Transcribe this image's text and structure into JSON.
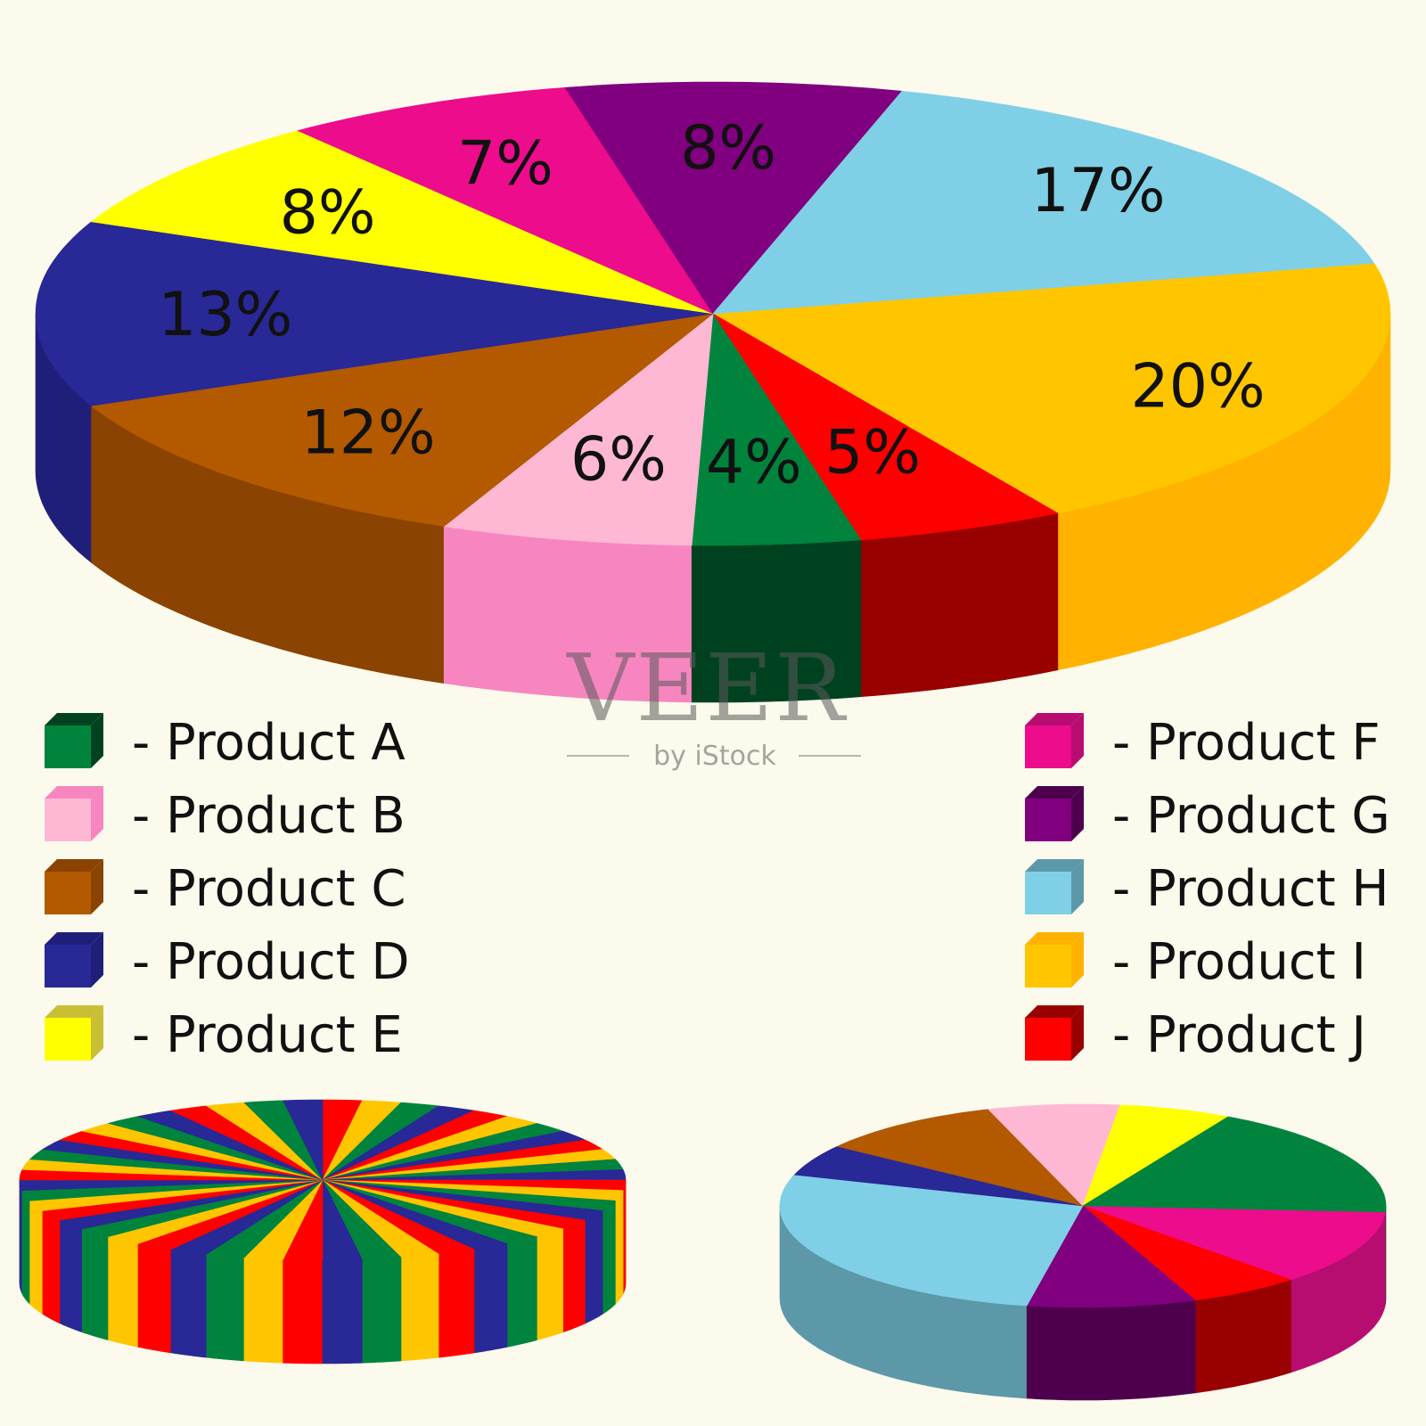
{
  "chart_data": [
    {
      "type": "pie",
      "slices": [
        {
          "label": "Product I",
          "value": 20,
          "text": "20%",
          "color": "#ffc600",
          "side": "#ffb300"
        },
        {
          "label": "Product J",
          "value": 5,
          "text": "5%",
          "color": "#ff0000",
          "side": "#990000"
        },
        {
          "label": "Product A",
          "value": 4,
          "text": "4%",
          "color": "#00843d",
          "side": "#00421f"
        },
        {
          "label": "Product B",
          "value": 6,
          "text": "6%",
          "color": "#ffb8d4",
          "side": "#f786c0"
        },
        {
          "label": "Product C",
          "value": 12,
          "text": "12%",
          "color": "#b35900",
          "side": "#8a4300"
        },
        {
          "label": "Product D",
          "value": 13,
          "text": "13%",
          "color": "#282896",
          "side": "#1f1f7a"
        },
        {
          "label": "Product E",
          "value": 8,
          "text": "8%",
          "color": "#ffff00",
          "side": "#c9bf34"
        },
        {
          "label": "Product F",
          "value": 7,
          "text": "7%",
          "color": "#ec0c8c",
          "side": "#b80d70"
        },
        {
          "label": "Product G",
          "value": 8,
          "text": "8%",
          "color": "#80007f",
          "side": "#4e004d"
        },
        {
          "label": "Product H",
          "value": 17,
          "text": "17%",
          "color": "#7fd0e6",
          "side": "#5c98a8"
        }
      ]
    },
    {
      "type": "pie",
      "repeat": 12,
      "slices": [
        {
          "value": 1,
          "color": "#ff0000",
          "side": "#ff0000"
        },
        {
          "value": 1,
          "color": "#ffc600",
          "side": "#ffc600"
        },
        {
          "value": 1,
          "color": "#00843d",
          "side": "#00843d"
        },
        {
          "value": 1,
          "color": "#282896",
          "side": "#282896"
        }
      ]
    },
    {
      "type": "pie",
      "slices": [
        {
          "value": 12,
          "color": "#ec0c8c",
          "side": "#b80d70"
        },
        {
          "value": 6,
          "color": "#ff0000",
          "side": "#990000"
        },
        {
          "value": 9,
          "color": "#80007f",
          "side": "#4e004d"
        },
        {
          "value": 27,
          "color": "#7fd0e6",
          "side": "#5c98a8"
        },
        {
          "value": 5,
          "color": "#282896",
          "side": "#1f1f7a"
        },
        {
          "value": 10,
          "color": "#b35900",
          "side": "#8a4300"
        },
        {
          "value": 7,
          "color": "#ffb8d4",
          "side": "#f786c0"
        },
        {
          "value": 6,
          "color": "#ffff00",
          "side": "#c9bf34"
        },
        {
          "value": 18,
          "color": "#00843d",
          "side": "#00421f"
        }
      ]
    }
  ],
  "legend_left": [
    {
      "text": "- Product A",
      "color": "#00843d",
      "side": "#00421f"
    },
    {
      "text": "- Product B",
      "color": "#ffb8d4",
      "side": "#f786c0"
    },
    {
      "text": "- Product C",
      "color": "#b35900",
      "side": "#8a4300"
    },
    {
      "text": "- Product D",
      "color": "#282896",
      "side": "#1f1f7a"
    },
    {
      "text": "- Product E",
      "color": "#ffff00",
      "side": "#c9bf34"
    }
  ],
  "legend_right": [
    {
      "text": "- Product F",
      "color": "#ec0c8c",
      "side": "#b80d70"
    },
    {
      "text": "- Product G",
      "color": "#80007f",
      "side": "#4e004d"
    },
    {
      "text": "- Product H",
      "color": "#7fd0e6",
      "side": "#5c98a8"
    },
    {
      "text": "- Product I",
      "color": "#ffc600",
      "side": "#ffb300"
    },
    {
      "text": "- Product J",
      "color": "#ff0000",
      "side": "#990000"
    }
  ],
  "watermark": {
    "brand": "VEER",
    "byline": "by iStock"
  }
}
